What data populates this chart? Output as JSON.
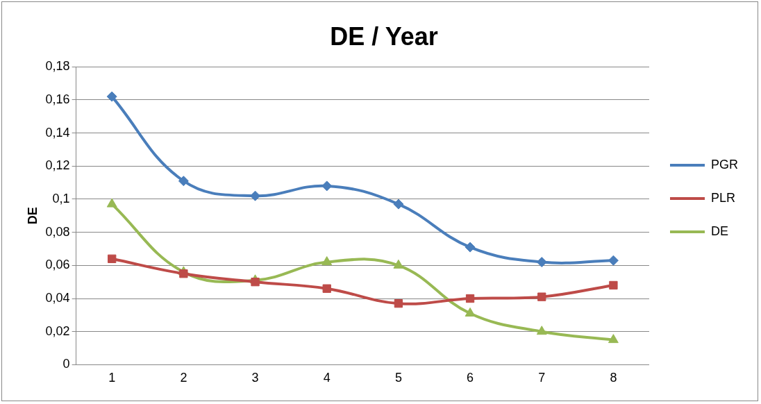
{
  "chart_data": {
    "type": "line",
    "title": "DE / Year",
    "ylabel": "DE",
    "categories": [
      "1",
      "2",
      "3",
      "4",
      "5",
      "6",
      "7",
      "8"
    ],
    "series": [
      {
        "name": "PGR",
        "color": "#4a7ebb",
        "marker": "diamond",
        "values": [
          0.162,
          0.111,
          0.102,
          0.108,
          0.097,
          0.071,
          0.062,
          0.063
        ]
      },
      {
        "name": "PLR",
        "color": "#be4b48",
        "marker": "square",
        "values": [
          0.064,
          0.055,
          0.05,
          0.046,
          0.037,
          0.04,
          0.041,
          0.048
        ]
      },
      {
        "name": "DE",
        "color": "#98b954",
        "marker": "triangle",
        "values": [
          0.097,
          0.056,
          0.051,
          0.062,
          0.06,
          0.031,
          0.02,
          0.015
        ]
      }
    ],
    "ylim": [
      0,
      0.18
    ],
    "yticks": [
      {
        "value": 0,
        "label": "0"
      },
      {
        "value": 0.02,
        "label": "0,02"
      },
      {
        "value": 0.04,
        "label": "0,04"
      },
      {
        "value": 0.06,
        "label": "0,06"
      },
      {
        "value": 0.08,
        "label": "0,08"
      },
      {
        "value": 0.1,
        "label": "0,1"
      },
      {
        "value": 0.12,
        "label": "0,12"
      },
      {
        "value": 0.14,
        "label": "0,14"
      },
      {
        "value": 0.16,
        "label": "0,16"
      },
      {
        "value": 0.18,
        "label": "0,18"
      }
    ],
    "grid": "y",
    "legend": "right"
  }
}
